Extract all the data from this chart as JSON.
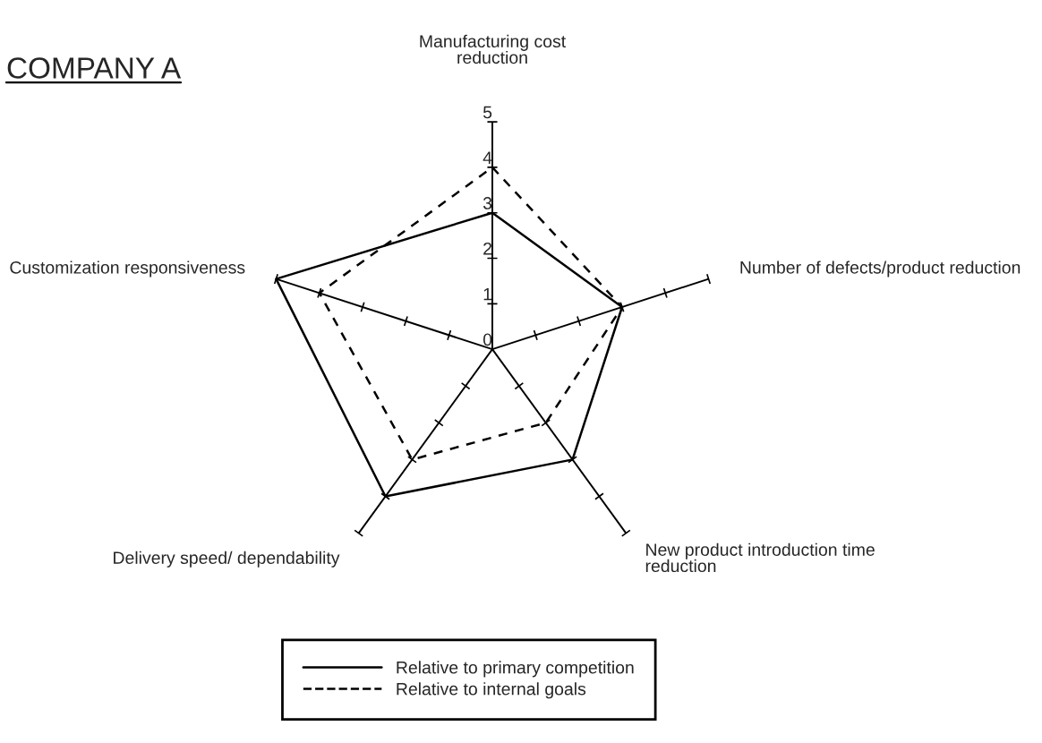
{
  "chart_data": {
    "type": "radar",
    "title": "COMPANY A",
    "categories": [
      "Manufacturing cost\nreduction",
      "Number of defects/product reduction",
      "New product introduction time\nreduction",
      "Delivery speed/ dependability",
      "Customization responsiveness"
    ],
    "series": [
      {
        "name": "Relative to primary competition",
        "color": "#000000",
        "line_style": "solid",
        "values": [
          3,
          3,
          3,
          4,
          5
        ]
      },
      {
        "name": "Relative to internal goals",
        "color": "#000000",
        "line_style": "dashed",
        "values": [
          4,
          3,
          2,
          3,
          4
        ]
      }
    ],
    "ylim": [
      0,
      5
    ],
    "yticks": [
      0,
      1,
      2,
      3,
      4,
      5
    ],
    "legend": "bottom"
  }
}
